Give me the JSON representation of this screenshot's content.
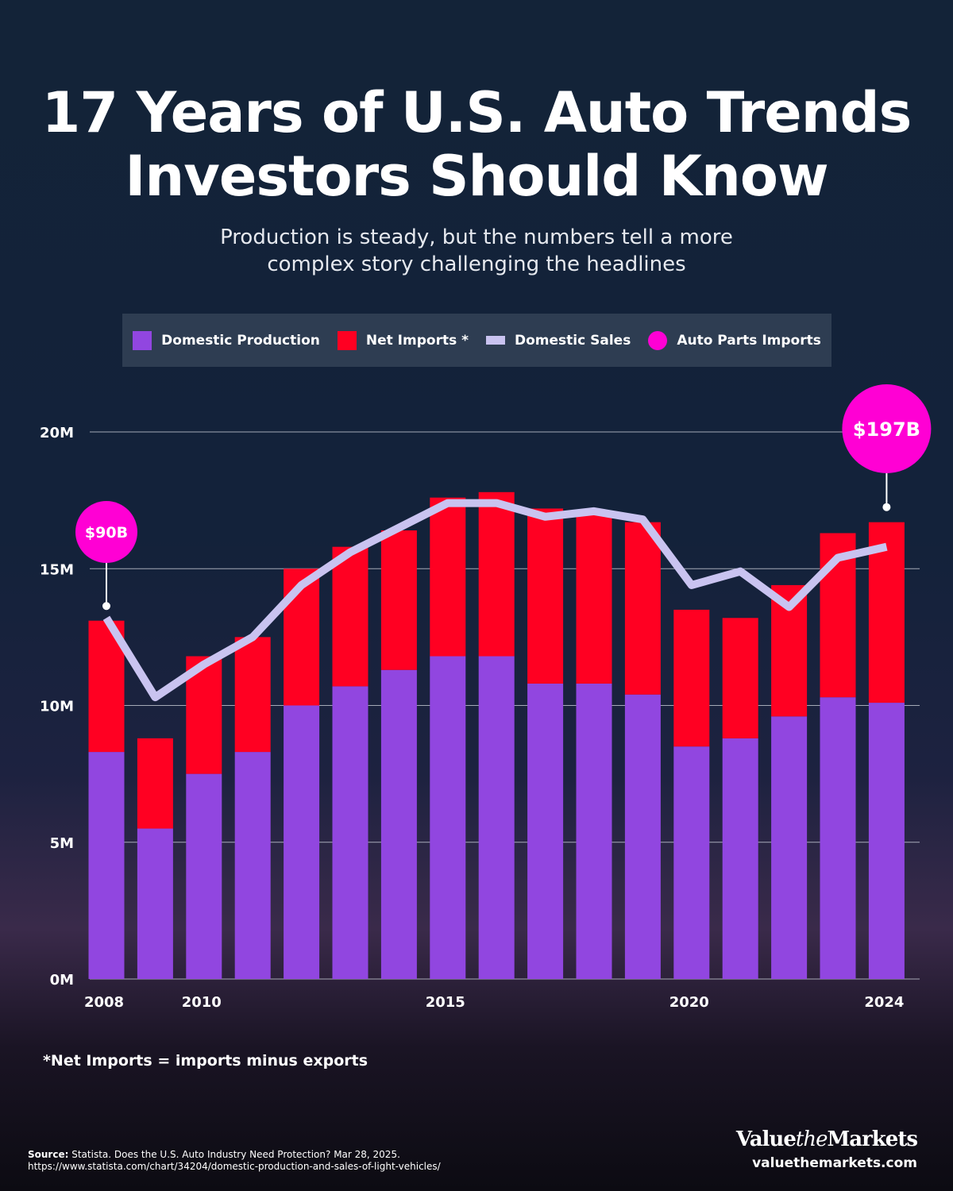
{
  "title_line1": "17 Years of U.S. Auto Trends",
  "title_line2": "Investors Should Know",
  "subtitle_line1": "Production is steady, but the numbers tell a more",
  "subtitle_line2": "complex story challenging the headlines",
  "legend": [
    {
      "label": "Domestic Production",
      "color": "#9146e0"
    },
    {
      "label": "Net Imports *",
      "color": "#ff0022"
    },
    {
      "label": "Domestic Sales",
      "color": "#c9c3f0"
    },
    {
      "label": "Auto Parts Imports",
      "color": "#ff00d4"
    }
  ],
  "chart_data": {
    "type": "bar",
    "stacked": true,
    "x": [
      2008,
      2009,
      2010,
      2011,
      2012,
      2013,
      2014,
      2015,
      2016,
      2017,
      2018,
      2019,
      2020,
      2021,
      2022,
      2023,
      2024
    ],
    "xtick_labels": [
      "2008",
      "2010",
      "2015",
      "2020",
      "2024"
    ],
    "ytick_labels": [
      "0M",
      "5M",
      "10M",
      "15M",
      "20M"
    ],
    "ylim": [
      0,
      20
    ],
    "grid": true,
    "legend_position": "top",
    "series": [
      {
        "name": "Domestic Production",
        "type": "bar",
        "color": "#9146e0",
        "values": [
          8.3,
          5.5,
          7.5,
          8.3,
          10.0,
          10.7,
          11.3,
          11.8,
          11.8,
          10.8,
          10.8,
          10.4,
          8.5,
          8.8,
          9.6,
          10.3,
          10.1
        ]
      },
      {
        "name": "Net Imports *",
        "type": "bar",
        "color": "#ff0022",
        "values": [
          4.8,
          3.3,
          4.3,
          4.2,
          5.0,
          5.1,
          5.1,
          5.8,
          6.0,
          6.4,
          6.2,
          6.3,
          5.0,
          4.4,
          4.8,
          6.0,
          6.6
        ]
      },
      {
        "name": "Domestic Sales",
        "type": "line",
        "color": "#c9c3f0",
        "values": [
          13.2,
          10.3,
          11.5,
          12.5,
          14.4,
          15.6,
          16.5,
          17.4,
          17.4,
          16.9,
          17.1,
          16.8,
          14.4,
          14.9,
          13.6,
          15.4,
          15.8
        ]
      }
    ],
    "annotations": [
      {
        "series": "Auto Parts Imports",
        "x": 2008,
        "label": "$90B",
        "color": "#ff00d4"
      },
      {
        "series": "Auto Parts Imports",
        "x": 2024,
        "label": "$197B",
        "color": "#ff00d4"
      }
    ]
  },
  "footnote": "*Net Imports = imports minus exports",
  "source_label": "Source:",
  "source_text": "Statista. Does the U.S. Auto Industry Need Protection? Mar 28, 2025.",
  "source_url": "https://www.statista.com/chart/34204/domestic-production-and-sales-of-light-vehicles/",
  "brand": {
    "part1": "Value",
    "part2": "the",
    "part3": "Markets",
    "site": "valuethemarkets.com"
  }
}
